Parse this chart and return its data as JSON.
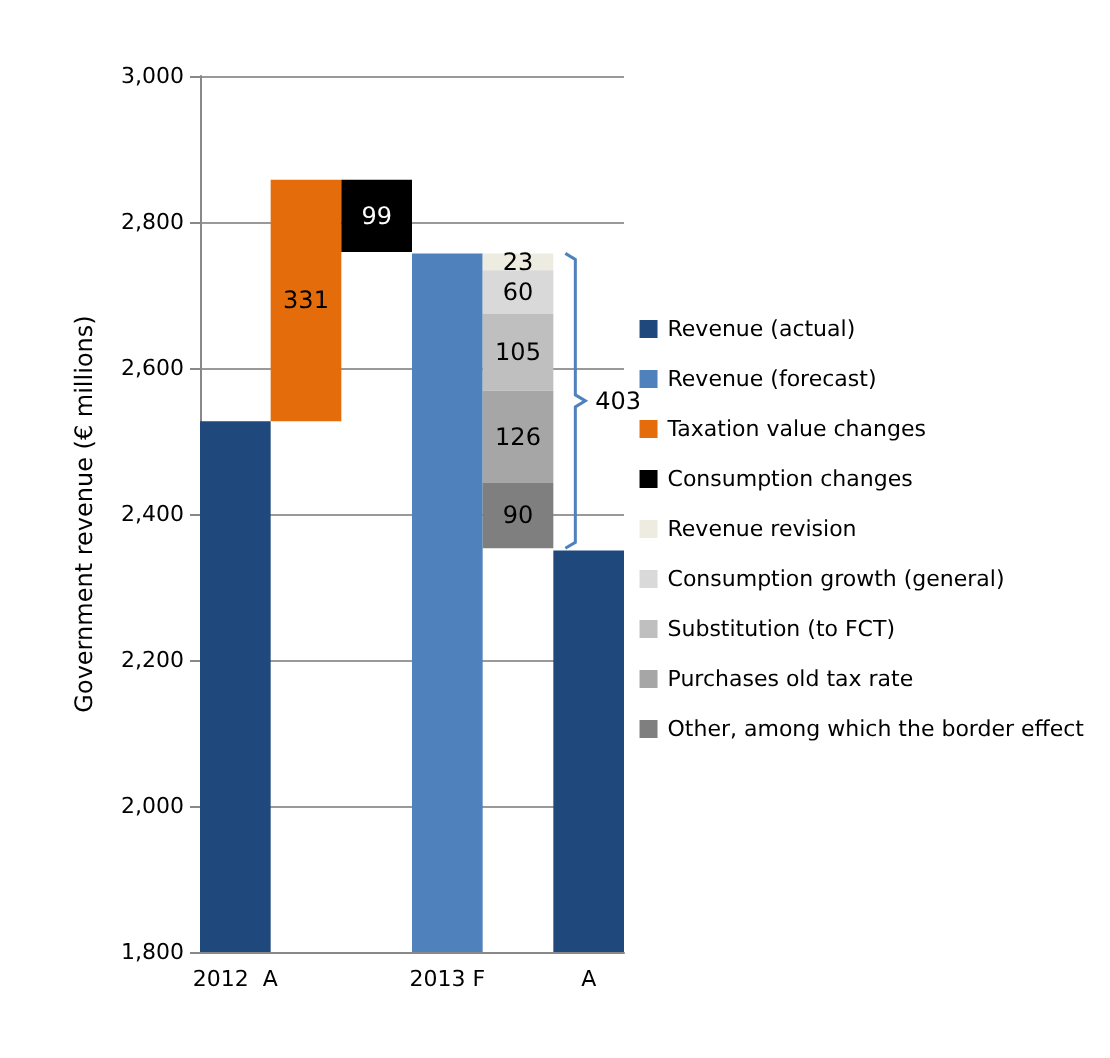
{
  "chart_data": {
    "type": "bar",
    "categories": [
      "2012  A",
      null,
      null,
      "2013 F",
      null,
      "A"
    ],
    "ylabel": "Government revenue (€ millions)",
    "ylim": [
      1800,
      3000
    ],
    "yticks": [
      {
        "value": 1800,
        "label": "1,800"
      },
      {
        "value": 2000,
        "label": "2,000"
      },
      {
        "value": 2200,
        "label": "2,200"
      },
      {
        "value": 2400,
        "label": "2,400"
      },
      {
        "value": 2600,
        "label": "2,600"
      },
      {
        "value": 2800,
        "label": "2,800"
      },
      {
        "value": 3000,
        "label": "3,000"
      }
    ],
    "grid": "y",
    "legend": "right",
    "series": [
      {
        "name": "Revenue (actual)",
        "color": "#1f497d",
        "values": [
          2527,
          null,
          null,
          null,
          null,
          2350
        ]
      },
      {
        "name": "Revenue (forecast)",
        "color": "#4f81bd",
        "values": [
          null,
          null,
          null,
          2757,
          null,
          null
        ]
      },
      {
        "name": "Taxation value changes",
        "color": "#e46c0a",
        "values": [
          null,
          331,
          null,
          null,
          null,
          null
        ],
        "base": [
          null,
          2527,
          null,
          null,
          null,
          null
        ],
        "value_labels": [
          null,
          "331",
          null,
          null,
          null,
          null
        ]
      },
      {
        "name": "Consumption changes",
        "color": "#000000",
        "values": [
          null,
          null,
          99,
          null,
          null,
          null
        ],
        "base": [
          null,
          null,
          2759,
          null,
          null,
          null
        ],
        "value_labels": [
          null,
          null,
          "99",
          null,
          null,
          null
        ]
      },
      {
        "name": "Revenue revision",
        "color": "#eeece1",
        "values": [
          null,
          null,
          null,
          null,
          23,
          null
        ],
        "base": [
          null,
          null,
          null,
          null,
          2734,
          null
        ],
        "value_labels": [
          null,
          null,
          null,
          null,
          "23",
          null
        ]
      },
      {
        "name": "Consumption growth (general)",
        "color": "#d9d9d9",
        "values": [
          null,
          null,
          null,
          null,
          60,
          null
        ],
        "base": [
          null,
          null,
          null,
          null,
          2674,
          null
        ],
        "value_labels": [
          null,
          null,
          null,
          null,
          "60",
          null
        ]
      },
      {
        "name": "Substitution (to FCT)",
        "color": "#bfbfbf",
        "values": [
          null,
          null,
          null,
          null,
          105,
          null
        ],
        "base": [
          null,
          null,
          null,
          null,
          2569,
          null
        ],
        "value_labels": [
          null,
          null,
          null,
          null,
          "105",
          null
        ]
      },
      {
        "name": "Purchases old tax rate",
        "color": "#a6a6a6",
        "values": [
          null,
          null,
          null,
          null,
          126,
          null
        ],
        "base": [
          null,
          null,
          null,
          null,
          2443,
          null
        ],
        "value_labels": [
          null,
          null,
          null,
          null,
          "126",
          null
        ]
      },
      {
        "name": "Other, among which the border effect",
        "color": "#7f7f7f",
        "values": [
          null,
          null,
          null,
          null,
          90,
          null
        ],
        "base": [
          null,
          null,
          null,
          null,
          2353,
          null
        ],
        "value_labels": [
          null,
          null,
          null,
          null,
          "90",
          null
        ]
      }
    ],
    "annotations": [
      "403"
    ]
  }
}
